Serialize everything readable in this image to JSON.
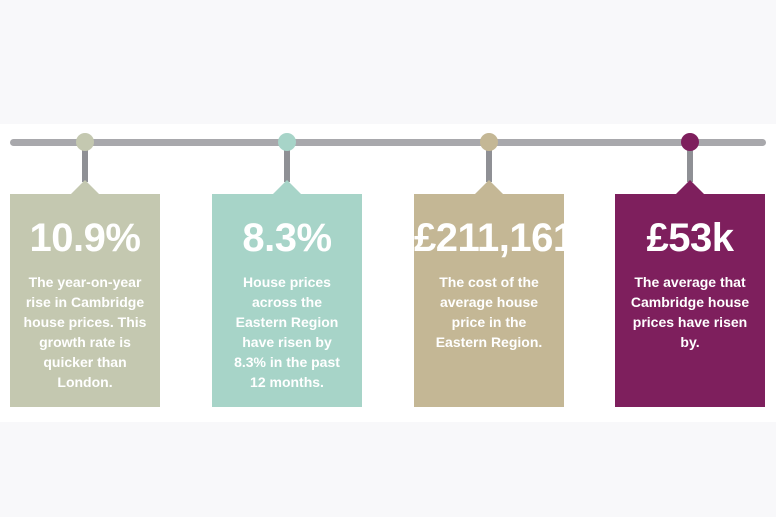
{
  "colors": {
    "rail": "#a8a8ac",
    "stem": "#8f9095",
    "sage": "#c4c8b0",
    "mint": "#a7d4c8",
    "tan": "#c4b795",
    "plum": "#7e1f5d"
  },
  "cards": [
    {
      "value": "10.9%",
      "text": "The year-on-year rise in Cambridge house prices. This growth rate is quicker than London."
    },
    {
      "value": "8.3%",
      "text": "House prices across the Eastern Region have risen by 8.3% in the past 12 months."
    },
    {
      "value": "£211,161",
      "text": "The cost of the average house price in the Eastern Region."
    },
    {
      "value": "£53k",
      "text": "The average that Cambridge house prices have risen by."
    }
  ]
}
